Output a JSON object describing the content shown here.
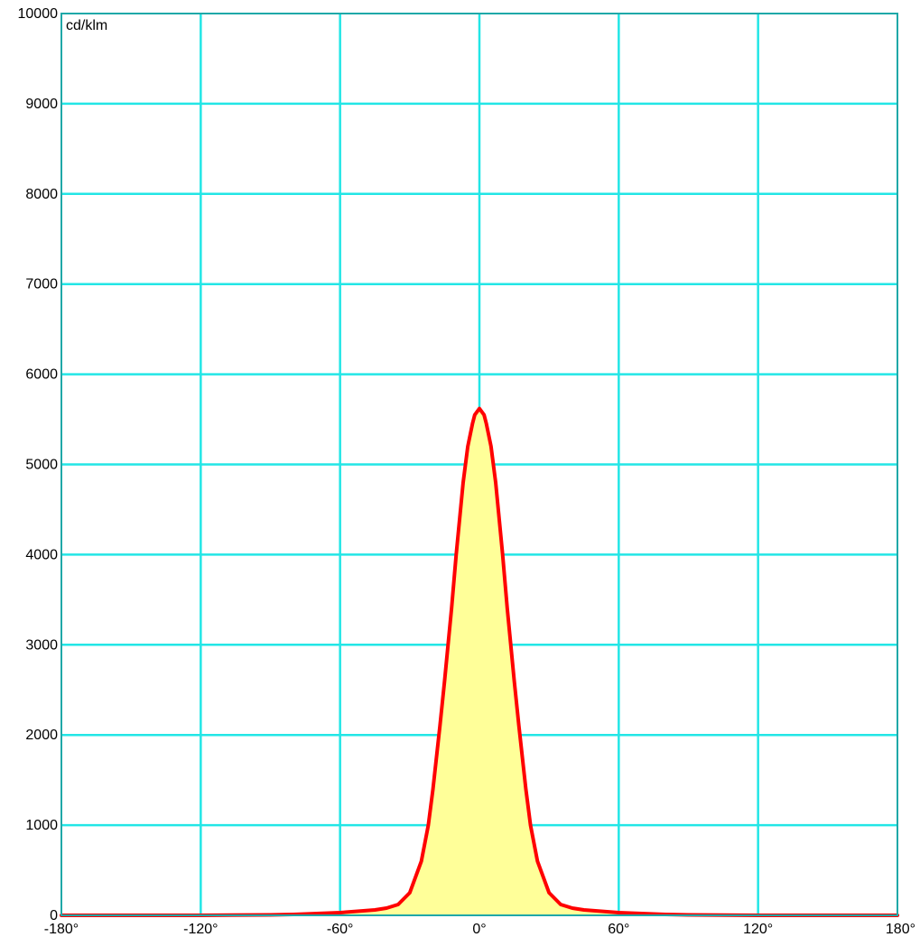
{
  "chart_data": {
    "type": "line",
    "title": "",
    "xlabel": "",
    "ylabel": "cd/klm",
    "unit_label": "cd/klm",
    "xlim": [
      -180,
      180
    ],
    "ylim": [
      0,
      10000
    ],
    "grid": true,
    "x_ticks": [
      -180,
      -120,
      -60,
      0,
      60,
      120,
      180
    ],
    "x_tick_labels": [
      "-180°",
      "-120°",
      "-60°",
      "0°",
      "60°",
      "120°",
      "180°"
    ],
    "y_ticks": [
      0,
      1000,
      2000,
      3000,
      4000,
      5000,
      6000,
      7000,
      8000,
      9000,
      10000
    ],
    "y_tick_labels": [
      "0",
      "1000",
      "2000",
      "3000",
      "4000",
      "5000",
      "6000",
      "7000",
      "8000",
      "9000",
      "10000"
    ],
    "colors": {
      "grid": "#22e6e6",
      "frame": "#1fa8a8",
      "line": "#ff0000",
      "fill": "#ffff99"
    },
    "series": [
      {
        "x": [
          -180,
          -150,
          -120,
          -90,
          -80,
          -70,
          -60,
          -50,
          -45,
          -40,
          -35,
          -30,
          -25,
          -22,
          -20,
          -17,
          -15,
          -12,
          -10,
          -7,
          -5,
          -3,
          -2,
          0,
          2,
          3,
          5,
          7,
          10,
          12,
          15,
          17,
          20,
          22,
          25,
          30,
          35,
          40,
          45,
          50,
          60,
          70,
          80,
          90,
          120,
          150,
          180
        ],
        "y": [
          0,
          0,
          0,
          5,
          10,
          20,
          30,
          50,
          60,
          80,
          120,
          250,
          600,
          1000,
          1400,
          2100,
          2600,
          3400,
          4000,
          4800,
          5200,
          5450,
          5550,
          5620,
          5550,
          5450,
          5200,
          4800,
          4000,
          3400,
          2600,
          2100,
          1400,
          1000,
          600,
          250,
          120,
          80,
          60,
          50,
          30,
          20,
          10,
          5,
          0,
          0,
          0
        ]
      }
    ]
  }
}
